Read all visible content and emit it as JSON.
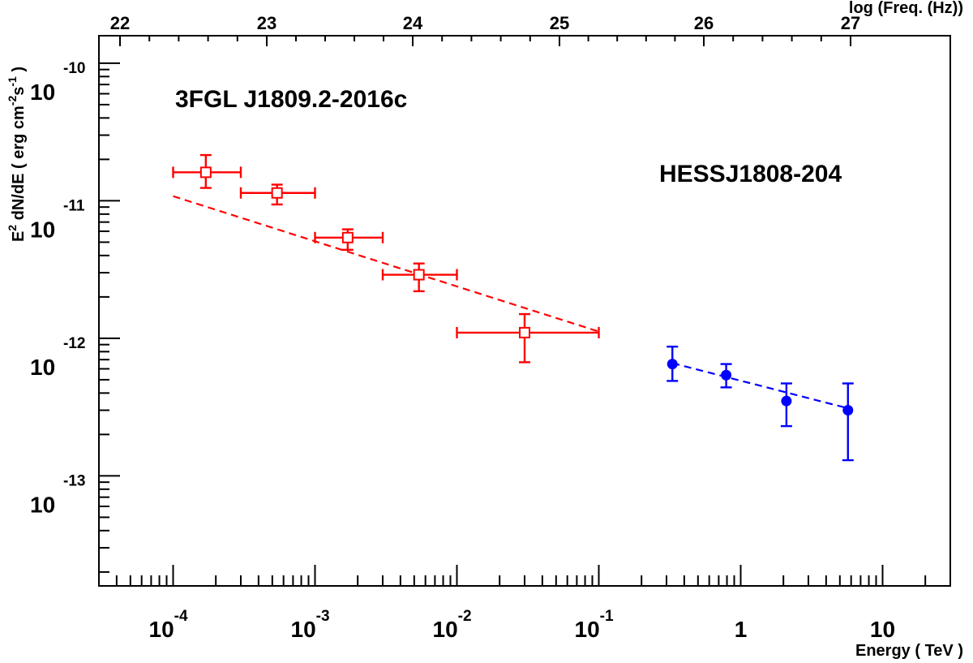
{
  "chart_data": {
    "type": "scatter",
    "log_x": true,
    "log_y": true,
    "xlim": [
      3e-05,
      30
    ],
    "ylim": [
      1.585e-14,
      1.585e-10
    ],
    "xlabel": "Energy ( TeV )",
    "ylabel": "E<sup>2</sup> dN/dE ( erg cm<sup>-2</sup>s<sup>-1</sup> )",
    "ylabel_plain": "E2 dN/dE ( erg cm-2s-1 )",
    "top_axis_label": "log (Freq. (Hz))",
    "top_ticks": [
      "22",
      "23",
      "24",
      "25",
      "26",
      "27"
    ],
    "x_ticks": [
      {
        "base": "10",
        "exp": "-4"
      },
      {
        "base": "10",
        "exp": "-3"
      },
      {
        "base": "10",
        "exp": "-2"
      },
      {
        "base": "10",
        "exp": "-1"
      },
      {
        "base": "1",
        "exp": ""
      },
      {
        "base": "10",
        "exp": ""
      }
    ],
    "y_ticks": [
      {
        "base": "10",
        "exp": "-10"
      },
      {
        "base": "10",
        "exp": "-11"
      },
      {
        "base": "10",
        "exp": "-12"
      },
      {
        "base": "10",
        "exp": "-13"
      }
    ],
    "grid": false,
    "series": [
      {
        "name": "3FGL J1809.2-2016c",
        "color": "#ff0000",
        "marker": "open-square",
        "points": [
          {
            "x": 0.00017,
            "y": 1.61e-11,
            "xlo": 0.0001,
            "xhi": 0.0003,
            "ylo": 1.24e-11,
            "yhi": 2.15e-11
          },
          {
            "x": 0.00054,
            "y": 1.14e-11,
            "xlo": 0.0003,
            "xhi": 0.001,
            "ylo": 9.4e-12,
            "yhi": 1.31e-11
          },
          {
            "x": 0.0017,
            "y": 5.4e-12,
            "xlo": 0.001,
            "xhi": 0.003,
            "ylo": 4.4e-12,
            "yhi": 6.2e-12
          },
          {
            "x": 0.0054,
            "y": 2.9e-12,
            "xlo": 0.003,
            "xhi": 0.01,
            "ylo": 2.2e-12,
            "yhi": 3.5e-12
          },
          {
            "x": 0.03,
            "y": 1.1e-12,
            "xlo": 0.01,
            "xhi": 0.1,
            "ylo": 6.7e-13,
            "yhi": 1.5e-12
          }
        ],
        "fit": {
          "x": [
            0.0001,
            0.1
          ],
          "y": [
            1.08e-11,
            1.12e-12
          ]
        }
      },
      {
        "name": "HESSJ1808-204",
        "color": "#0000ff",
        "marker": "filled-circle",
        "points": [
          {
            "x": 0.33,
            "y": 6.5e-13,
            "ylo": 4.9e-13,
            "yhi": 8.7e-13
          },
          {
            "x": 0.79,
            "y": 5.4e-13,
            "ylo": 4.4e-13,
            "yhi": 6.5e-13
          },
          {
            "x": 2.1,
            "y": 3.5e-13,
            "ylo": 2.3e-13,
            "yhi": 4.7e-13
          },
          {
            "x": 5.7,
            "y": 3e-13,
            "ylo": 1.3e-13,
            "yhi": 4.7e-13
          }
        ],
        "fit": {
          "x": [
            0.33,
            5.7
          ],
          "y": [
            6.6e-13,
            3.1e-13
          ]
        }
      }
    ]
  }
}
